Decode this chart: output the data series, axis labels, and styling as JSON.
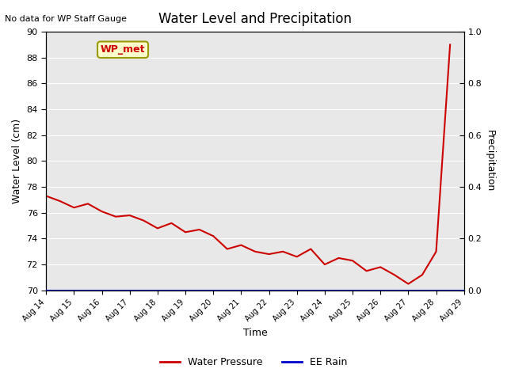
{
  "title": "Water Level and Precipitation",
  "top_left_text": "No data for WP Staff Gauge",
  "xlabel": "Time",
  "ylabel_left": "Water Level (cm)",
  "ylabel_right": "Precipitation",
  "ylim_left": [
    70,
    90
  ],
  "ylim_right": [
    0.0,
    1.0
  ],
  "yticks_left": [
    70,
    72,
    74,
    76,
    78,
    80,
    82,
    84,
    86,
    88,
    90
  ],
  "yticks_right": [
    0.0,
    0.2,
    0.4,
    0.6,
    0.8,
    1.0
  ],
  "xtick_labels": [
    "Aug 14",
    "Aug 15",
    "Aug 16",
    "Aug 17",
    "Aug 18",
    "Aug 19",
    "Aug 20",
    "Aug 21",
    "Aug 22",
    "Aug 23",
    "Aug 24",
    "Aug 25",
    "Aug 26",
    "Aug 27",
    "Aug 28",
    "Aug 29"
  ],
  "water_pressure_color": "#cc0000",
  "ee_rain_color": "#0000cc",
  "legend_wp_label": "Water Pressure",
  "legend_rain_label": "EE Rain",
  "wp_met_label": "WP_met",
  "wp_met_bg": "#ffffcc",
  "wp_met_border": "#999900",
  "wp_met_text_color": "#cc0000",
  "background_color": "#e8e8e8",
  "grid_color": "#ffffff",
  "water_x": [
    0,
    0.5,
    1,
    1.5,
    2,
    2.5,
    3,
    3.5,
    4,
    4.5,
    5,
    5.5,
    6,
    6.5,
    7,
    7.5,
    8,
    8.5,
    9,
    9.5,
    10,
    10.5,
    11,
    11.5,
    12,
    12.5,
    13,
    13.5,
    14,
    14.5
  ],
  "water_y": [
    77.3,
    76.9,
    76.4,
    76.7,
    76.1,
    75.7,
    75.8,
    75.4,
    74.8,
    75.2,
    74.5,
    74.7,
    74.2,
    73.2,
    73.5,
    73.0,
    72.8,
    73.0,
    72.6,
    73.2,
    72.0,
    72.5,
    72.3,
    71.5,
    71.8,
    71.2,
    70.5,
    71.2,
    73.0,
    89.0
  ]
}
